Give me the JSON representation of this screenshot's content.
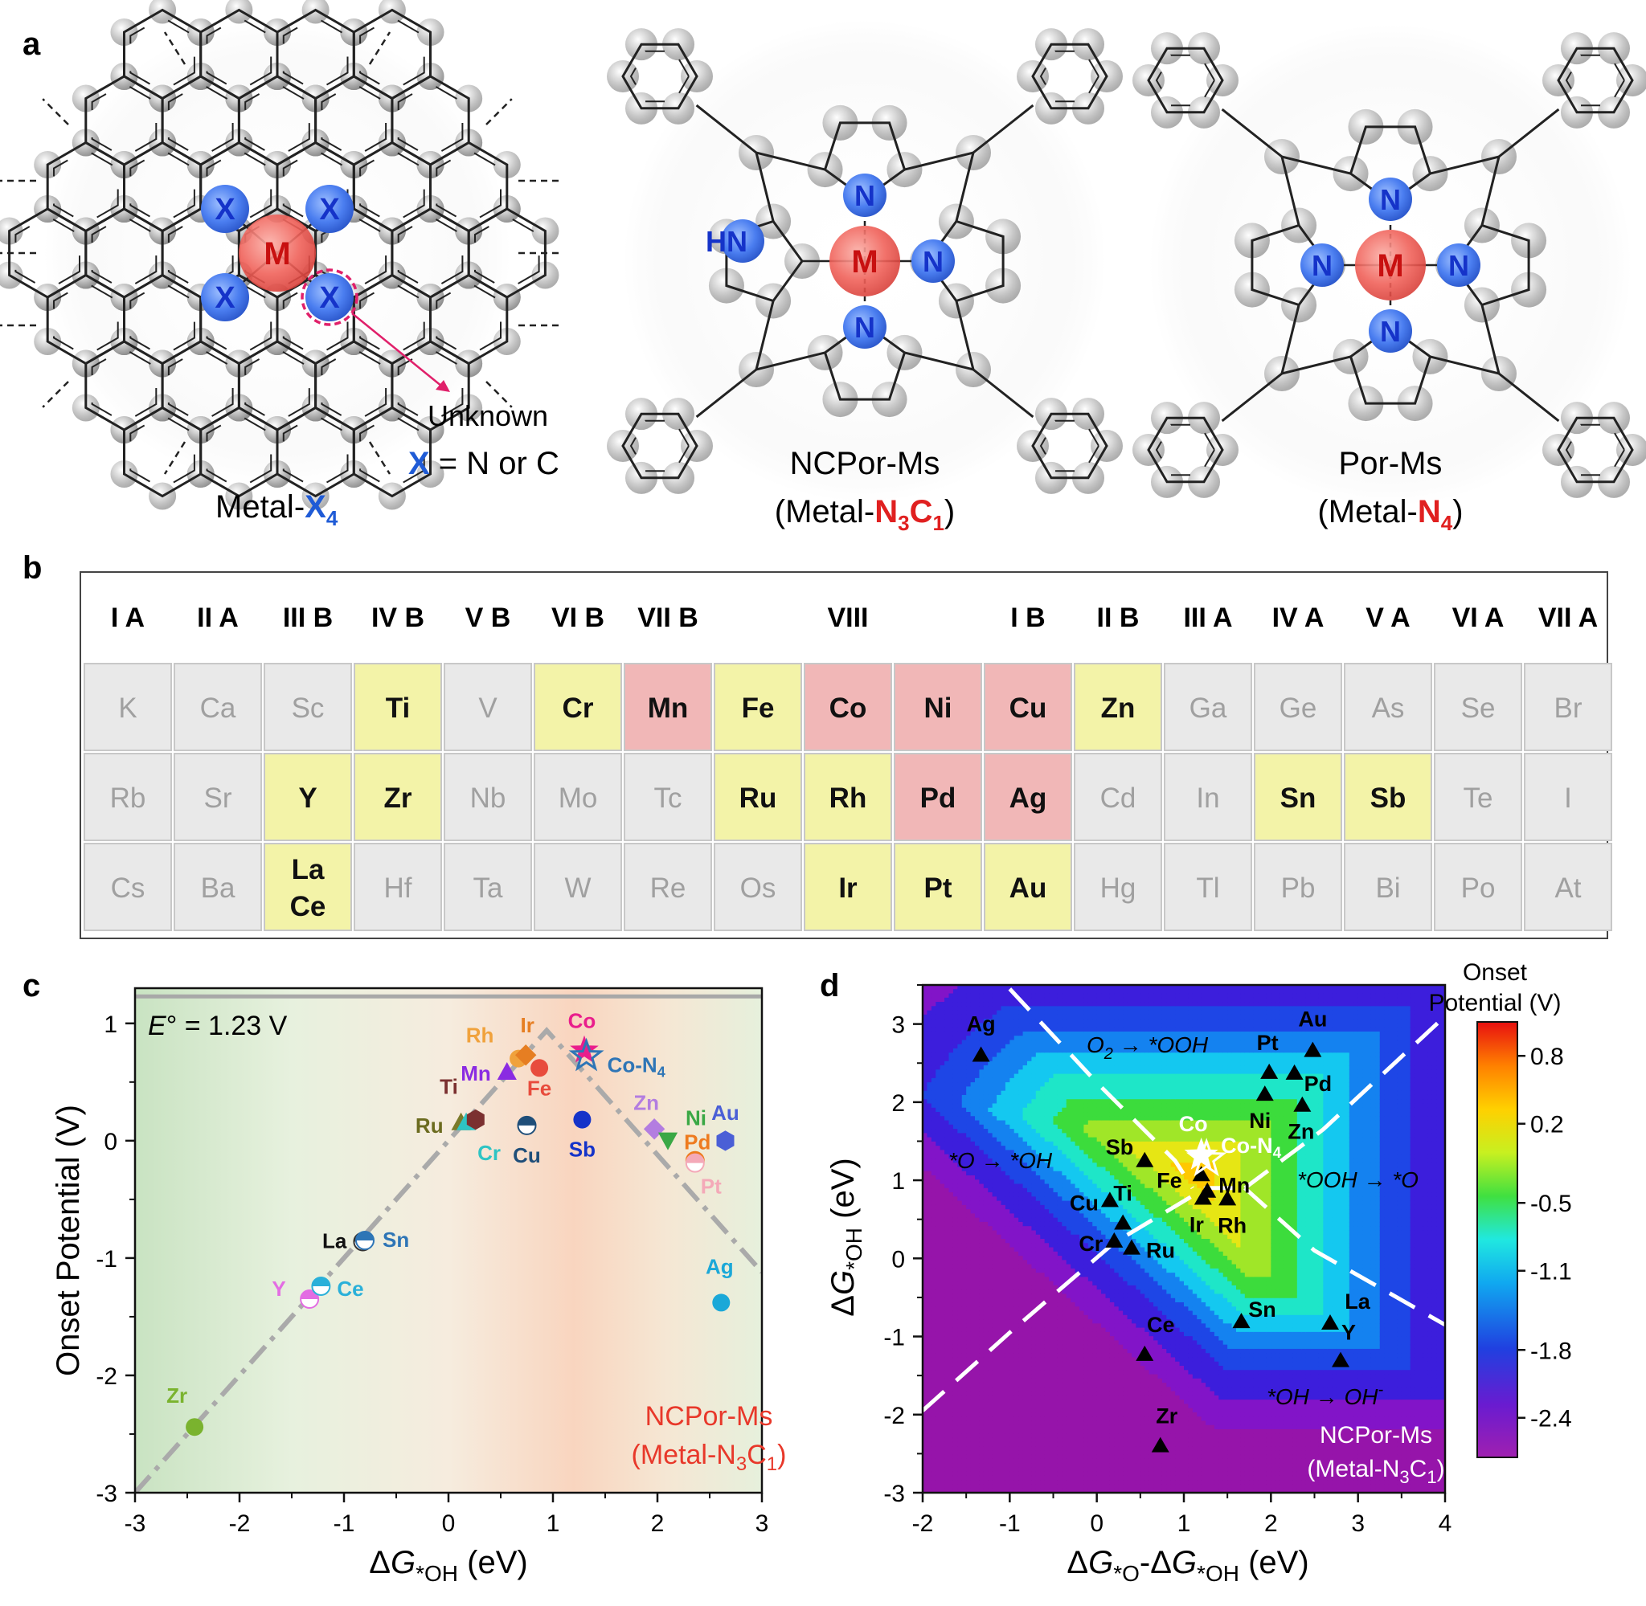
{
  "panel_a": {
    "letter": "a",
    "metal_x4": {
      "atom_metal": "M",
      "atom_x": "X",
      "unknown": "Unknown",
      "x_def_x": "X",
      "x_def_rest": " = N or C",
      "caption_main": "Metal-",
      "caption_x": "X",
      "caption_sub": "4"
    },
    "ncpor": {
      "atom_metal": "M",
      "atom_n": "N",
      "atom_hn": "HN",
      "title": "NCPor-Ms",
      "caption_open": "(Metal-",
      "caption_n": "N",
      "caption_n_sub": "3",
      "caption_c": "C",
      "caption_c_sub": "1",
      "caption_close": ")"
    },
    "por": {
      "atom_metal": "M",
      "atom_n": "N",
      "title": "Por-Ms",
      "caption_open": "(Metal-",
      "caption_n": "N",
      "caption_n_sub": "4",
      "caption_close": ")"
    }
  },
  "panel_b": {
    "letter": "b",
    "groups": [
      "I A",
      "II A",
      "III B",
      "IV B",
      "V B",
      "VI B",
      "VII B",
      "VIII",
      "I B",
      "II B",
      "III A",
      "IV A",
      "V A",
      "VI A",
      "VII A"
    ],
    "colors": {
      "gray": "#e9e9e9",
      "yellow": "#f3f3a8",
      "red": "#f1b7b7",
      "gray_text": "#a0a0a0"
    },
    "rows": [
      [
        {
          "t": "K",
          "c": "gray"
        },
        {
          "t": "Ca",
          "c": "gray"
        },
        {
          "t": "Sc",
          "c": "gray"
        },
        {
          "t": "Ti",
          "c": "yellow"
        },
        {
          "t": "V",
          "c": "gray"
        },
        {
          "t": "Cr",
          "c": "yellow"
        },
        {
          "t": "Mn",
          "c": "red"
        },
        {
          "t": "Fe",
          "c": "yellow"
        },
        {
          "t": "Co",
          "c": "red"
        },
        {
          "t": "Ni",
          "c": "red"
        },
        {
          "t": "Cu",
          "c": "red"
        },
        {
          "t": "Zn",
          "c": "yellow"
        },
        {
          "t": "Ga",
          "c": "gray"
        },
        {
          "t": "Ge",
          "c": "gray"
        },
        {
          "t": "As",
          "c": "gray"
        },
        {
          "t": "Se",
          "c": "gray"
        },
        {
          "t": "Br",
          "c": "gray"
        }
      ],
      [
        {
          "t": "Rb",
          "c": "gray"
        },
        {
          "t": "Sr",
          "c": "gray"
        },
        {
          "t": "Y",
          "c": "yellow"
        },
        {
          "t": "Zr",
          "c": "yellow"
        },
        {
          "t": "Nb",
          "c": "gray"
        },
        {
          "t": "Mo",
          "c": "gray"
        },
        {
          "t": "Tc",
          "c": "gray"
        },
        {
          "t": "Ru",
          "c": "yellow"
        },
        {
          "t": "Rh",
          "c": "yellow"
        },
        {
          "t": "Pd",
          "c": "red"
        },
        {
          "t": "Ag",
          "c": "red"
        },
        {
          "t": "Cd",
          "c": "gray"
        },
        {
          "t": "In",
          "c": "gray"
        },
        {
          "t": "Sn",
          "c": "yellow"
        },
        {
          "t": "Sb",
          "c": "yellow"
        },
        {
          "t": "Te",
          "c": "gray"
        },
        {
          "t": "I",
          "c": "gray"
        }
      ],
      [
        {
          "t": "Cs",
          "c": "gray"
        },
        {
          "t": "Ba",
          "c": "gray"
        },
        {
          "t": "La",
          "t2": "Ce",
          "c": "yellow"
        },
        {
          "t": "Hf",
          "c": "gray"
        },
        {
          "t": "Ta",
          "c": "gray"
        },
        {
          "t": "W",
          "c": "gray"
        },
        {
          "t": "Re",
          "c": "gray"
        },
        {
          "t": "Os",
          "c": "gray"
        },
        {
          "t": "Ir",
          "c": "yellow"
        },
        {
          "t": "Pt",
          "c": "yellow"
        },
        {
          "t": "Au",
          "c": "yellow"
        },
        {
          "t": "Hg",
          "c": "gray"
        },
        {
          "t": "Tl",
          "c": "gray"
        },
        {
          "t": "Pb",
          "c": "gray"
        },
        {
          "t": "Bi",
          "c": "gray"
        },
        {
          "t": "Po",
          "c": "gray"
        },
        {
          "t": "At",
          "c": "gray"
        }
      ]
    ]
  },
  "panel_c": {
    "letter": "c",
    "ylabel": "Onset Potential (V)",
    "xlabel_delta": "ΔG",
    "xlabel_sub": "*OH",
    "xlabel_unit": " (eV)",
    "eq_italic": "E",
    "eq_rest": "° = 1.23 V",
    "series_line1": "NCPor-Ms",
    "series_line2_open": "(Metal-N",
    "series_line2_sub1": "3",
    "series_line2_c": "C",
    "series_line2_sub2": "1",
    "series_line2_close": ")",
    "series_color": "#e8382a"
  },
  "panel_d": {
    "letter": "d",
    "ylabel_delta": "ΔG",
    "ylabel_sub": "*OH",
    "ylabel_unit": " (eV)",
    "xlabel_a": "ΔG",
    "xlabel_a_sub": "*O",
    "xlabel_mid": "-ΔG",
    "xlabel_b_sub": "*OH",
    "xlabel_unit": " (eV)",
    "region_o2": "O",
    "region_o2_sub": "2",
    "region_o2_rest": " → *OOH",
    "region_o": "*O → *OH",
    "region_ooh": "*OOH → *O",
    "region_oh": "*OH → OH",
    "region_oh_sup": "-",
    "series_line1": "NCPor-Ms",
    "series_line2_open": "(Metal-N",
    "series_line2_sub1": "3",
    "series_line2_c": "C",
    "series_line2_sub2": "1",
    "series_line2_close": ")",
    "colorbar_title1": "Onset",
    "colorbar_title2": "Potential (V)",
    "colorbar_ticks": [
      "0.8",
      "0.2",
      "-0.5",
      "-1.1",
      "-1.8",
      "-2.4"
    ]
  },
  "chart_data": [
    {
      "type": "scatter",
      "panel": "c",
      "xlabel": "ΔG*OH (eV)",
      "ylabel": "Onset Potential (V)",
      "xlim": [
        -3,
        3
      ],
      "ylim": [
        -3,
        1.3
      ],
      "xticks": [
        "-3",
        "-2",
        "-1",
        "0",
        "1",
        "2",
        "3"
      ],
      "yticks": [
        "1",
        "0",
        "-1",
        "-2",
        "-3"
      ],
      "reference_line": {
        "y": 1.23,
        "label": "E° = 1.23 V"
      },
      "volcano_line": [
        [
          -3,
          -3
        ],
        [
          0.94,
          0.94
        ],
        [
          3,
          -1.12
        ]
      ],
      "points": [
        {
          "label": "Zr",
          "x": -2.43,
          "y": -2.44,
          "marker": "circle",
          "color": "#7ab32e",
          "label_color": "#7ab32e"
        },
        {
          "label": "Y",
          "x": -1.33,
          "y": -1.35,
          "marker": "half-circle",
          "color": "#e36de3",
          "label_color": "#e36de3"
        },
        {
          "label": "Ce",
          "x": -1.22,
          "y": -1.24,
          "marker": "half-circle",
          "color": "#2ab0d9",
          "label_color": "#2ab0d9"
        },
        {
          "label": "La",
          "x": -0.82,
          "y": -0.86,
          "marker": "half-circle",
          "color": "#333333",
          "label_color": "#111111"
        },
        {
          "label": "Sn",
          "x": -0.8,
          "y": -0.85,
          "marker": "half-circle",
          "color": "#2e75b6",
          "label_color": "#2e75b6"
        },
        {
          "label": "Ru",
          "x": 0.12,
          "y": 0.15,
          "marker": "triangle",
          "color": "#7a7a2a",
          "label_color": "#6b6b1f"
        },
        {
          "label": "Cr",
          "x": 0.17,
          "y": 0.15,
          "marker": "triangle",
          "color": "#2ec4c4",
          "label_color": "#2ec4c4"
        },
        {
          "label": "Ti",
          "x": 0.26,
          "y": 0.18,
          "marker": "hexagon",
          "color": "#7b3030",
          "label_color": "#7b3030"
        },
        {
          "label": "Mn",
          "x": 0.56,
          "y": 0.58,
          "marker": "triangle",
          "color": "#8a2be2",
          "label_color": "#8a2be2"
        },
        {
          "label": "Cu",
          "x": 0.75,
          "y": 0.13,
          "marker": "half-circle",
          "color": "#1f4e79",
          "label_color": "#1f4e79"
        },
        {
          "label": "Rh",
          "x": 0.67,
          "y": 0.7,
          "marker": "circle",
          "color": "#f0a23c",
          "label_color": "#f0a23c"
        },
        {
          "label": "Ir",
          "x": 0.74,
          "y": 0.73,
          "marker": "diamond",
          "color": "#e67e22",
          "label_color": "#e67e22"
        },
        {
          "label": "Fe",
          "x": 0.87,
          "y": 0.62,
          "marker": "circle",
          "color": "#e84c3d",
          "label_color": "#e84c3d"
        },
        {
          "label": "Co",
          "x": 1.3,
          "y": 0.77,
          "marker": "star",
          "color": "#e91e8c",
          "label_color": "#e91e8c"
        },
        {
          "label": "Co-N4",
          "x": 1.32,
          "y": 0.72,
          "marker": "star-open",
          "color": "#2e75b6",
          "label_color": "#2e75b6"
        },
        {
          "label": "Sb",
          "x": 1.28,
          "y": 0.18,
          "marker": "circle",
          "color": "#1533c9",
          "label_color": "#1533c9"
        },
        {
          "label": "Zn",
          "x": 1.97,
          "y": 0.1,
          "marker": "diamond",
          "color": "#b37de0",
          "label_color": "#b37de0"
        },
        {
          "label": "Ni",
          "x": 2.1,
          "y": 0.01,
          "marker": "triangle-down",
          "color": "#3aa845",
          "label_color": "#3aa845"
        },
        {
          "label": "Pd",
          "x": 2.36,
          "y": -0.17,
          "marker": "half-circle",
          "color": "#ee7b1f",
          "label_color": "#ee7b1f"
        },
        {
          "label": "Pt",
          "x": 2.36,
          "y": -0.19,
          "marker": "half-circle",
          "color": "#f4a9b8",
          "label_color": "#f4a9b8"
        },
        {
          "label": "Au",
          "x": 2.65,
          "y": 0.0,
          "marker": "hexagon",
          "color": "#4a5fd6",
          "label_color": "#4a5fd6"
        },
        {
          "label": "Ag",
          "x": 2.61,
          "y": -1.38,
          "marker": "circle",
          "color": "#1ba8d8",
          "label_color": "#1ba8d8"
        }
      ]
    },
    {
      "type": "heatmap",
      "panel": "d",
      "xlabel": "ΔG*O-ΔG*OH (eV)",
      "ylabel": "ΔG*OH (eV)",
      "xlim": [
        -2,
        4
      ],
      "ylim": [
        -3,
        3.5
      ],
      "xticks": [
        "-2",
        "-1",
        "0",
        "1",
        "2",
        "3",
        "4"
      ],
      "yticks": [
        "3",
        "2",
        "1",
        "0",
        "-1",
        "-2",
        "-3"
      ],
      "colorbar": {
        "title": "Onset Potential (V)",
        "ticks": [
          0.8,
          0.2,
          -0.5,
          -1.1,
          -1.8,
          -2.4
        ],
        "range": [
          -2.75,
          1.1
        ]
      },
      "peak": {
        "x": 1.35,
        "y": 0.95,
        "value": 0.9
      },
      "points": [
        {
          "label": "Ag",
          "x": -1.33,
          "y": 2.6
        },
        {
          "label": "Au",
          "x": 2.48,
          "y": 2.66
        },
        {
          "label": "Pt",
          "x": 1.98,
          "y": 2.38
        },
        {
          "label": "Pd",
          "x": 2.27,
          "y": 2.37
        },
        {
          "label": "Ni",
          "x": 1.93,
          "y": 2.1
        },
        {
          "label": "Zn",
          "x": 2.36,
          "y": 1.96
        },
        {
          "label": "Sb",
          "x": 0.55,
          "y": 1.25
        },
        {
          "label": "Fe",
          "x": 1.2,
          "y": 1.07
        },
        {
          "label": "Mn",
          "x": 1.27,
          "y": 0.86
        },
        {
          "label": "Ir",
          "x": 1.22,
          "y": 0.77
        },
        {
          "label": "Rh",
          "x": 1.5,
          "y": 0.76
        },
        {
          "label": "Cu",
          "x": 0.15,
          "y": 0.74
        },
        {
          "label": "Ti",
          "x": 0.3,
          "y": 0.45
        },
        {
          "label": "Cr",
          "x": 0.2,
          "y": 0.22
        },
        {
          "label": "Ru",
          "x": 0.4,
          "y": 0.13
        },
        {
          "label": "Sn",
          "x": 1.66,
          "y": -0.81
        },
        {
          "label": "La",
          "x": 2.68,
          "y": -0.83
        },
        {
          "label": "Ce",
          "x": 0.55,
          "y": -1.23
        },
        {
          "label": "Y",
          "x": 2.8,
          "y": -1.31
        },
        {
          "label": "Zr",
          "x": 0.73,
          "y": -2.4
        },
        {
          "label": "Co",
          "x": 1.2,
          "y": 1.32,
          "marker": "star"
        },
        {
          "label": "Co-N4",
          "x": 1.26,
          "y": 1.27,
          "marker": "star-open"
        }
      ],
      "dashed_lines": [
        [
          [
            -2,
            -1.95
          ],
          [
            -1.0,
            -0.95
          ],
          [
            0.2,
            0.2
          ],
          [
            1.25,
            0.9
          ],
          [
            1.7,
            0.9
          ]
        ],
        [
          [
            1.7,
            0.9
          ],
          [
            2.6,
            1.65
          ],
          [
            4.0,
            3.1
          ]
        ],
        [
          [
            1.7,
            0.9
          ],
          [
            2.5,
            0.1
          ],
          [
            4.0,
            -0.85
          ]
        ],
        [
          [
            -1.0,
            3.45
          ],
          [
            0.0,
            2.25
          ],
          [
            0.9,
            1.25
          ],
          [
            1.1,
            0.9
          ]
        ]
      ]
    }
  ]
}
